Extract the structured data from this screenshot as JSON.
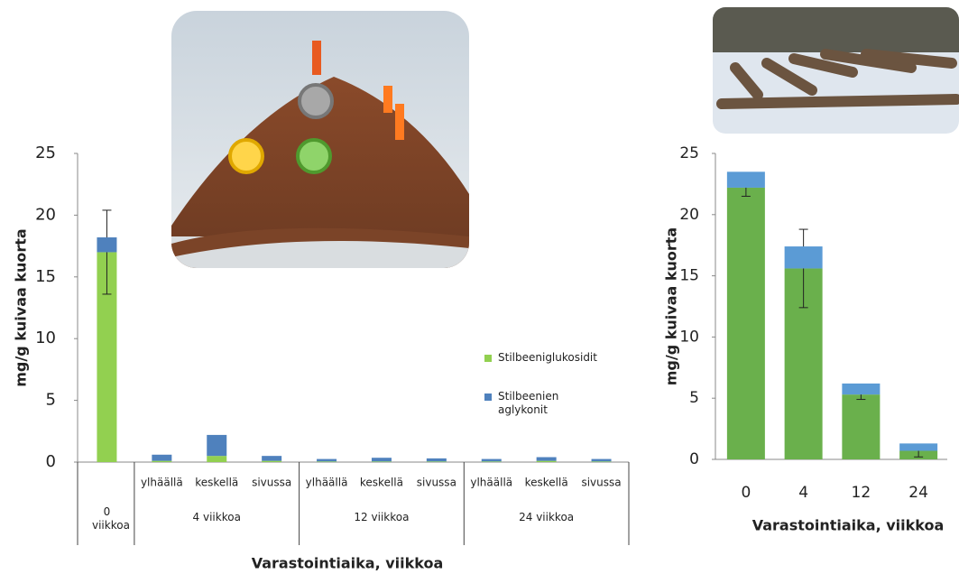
{
  "chart_data": [
    {
      "type": "bar",
      "stacked": true,
      "grid": false,
      "ylabel": "mg/g kuivaa kuorta",
      "xlabel": "Varastointiaika, viikkoa",
      "groups": [
        {
          "name": "0 viikkoa",
          "categories": [
            null
          ]
        },
        {
          "name": "4 viikkoa",
          "categories": [
            "ylhäällä",
            "keskellä",
            "sivussa"
          ]
        },
        {
          "name": "12 viikkoa",
          "categories": [
            "ylhäällä",
            "keskellä",
            "sivussa"
          ]
        },
        {
          "name": "24 viikkoa",
          "categories": [
            "ylhäällä",
            "keskellä",
            "sivussa"
          ]
        }
      ],
      "series": [
        {
          "name": "Stilbeeniglukosidit",
          "color": "#92d050",
          "values": [
            17.0,
            0.1,
            0.5,
            0.1,
            0.05,
            0.05,
            0.05,
            0.05,
            0.1,
            0.05
          ],
          "errors": [
            3.4,
            null,
            null,
            null,
            null,
            null,
            null,
            null,
            null,
            null
          ]
        },
        {
          "name": "Stilbeenien aglykonit",
          "color": "#4f81bd",
          "values": [
            1.2,
            0.5,
            1.7,
            0.4,
            0.2,
            0.3,
            0.25,
            0.2,
            0.3,
            0.2
          ]
        }
      ],
      "legend": "right",
      "ylim": [
        0,
        25
      ],
      "yticks": [
        0,
        5,
        10,
        15,
        20,
        25
      ]
    },
    {
      "type": "bar",
      "stacked": true,
      "grid": false,
      "ylabel": "mg/g kuivaa kuorta",
      "xlabel": "Varastointiaika, viikkoa",
      "categories": [
        "0",
        "4",
        "12",
        "24"
      ],
      "series": [
        {
          "name": "Stilbeeniglukosidit",
          "color": "#6ab04c",
          "values": [
            22.2,
            15.6,
            5.3,
            0.7
          ],
          "errors": [
            0.7,
            3.2,
            0.4,
            0.5
          ]
        },
        {
          "name": "Stilbeenien aglykonit",
          "color": "#5b9bd5",
          "values": [
            1.3,
            1.8,
            0.9,
            0.6
          ]
        }
      ],
      "ylim": [
        0,
        25
      ],
      "yticks": [
        0,
        5,
        10,
        15,
        20,
        25
      ]
    }
  ]
}
